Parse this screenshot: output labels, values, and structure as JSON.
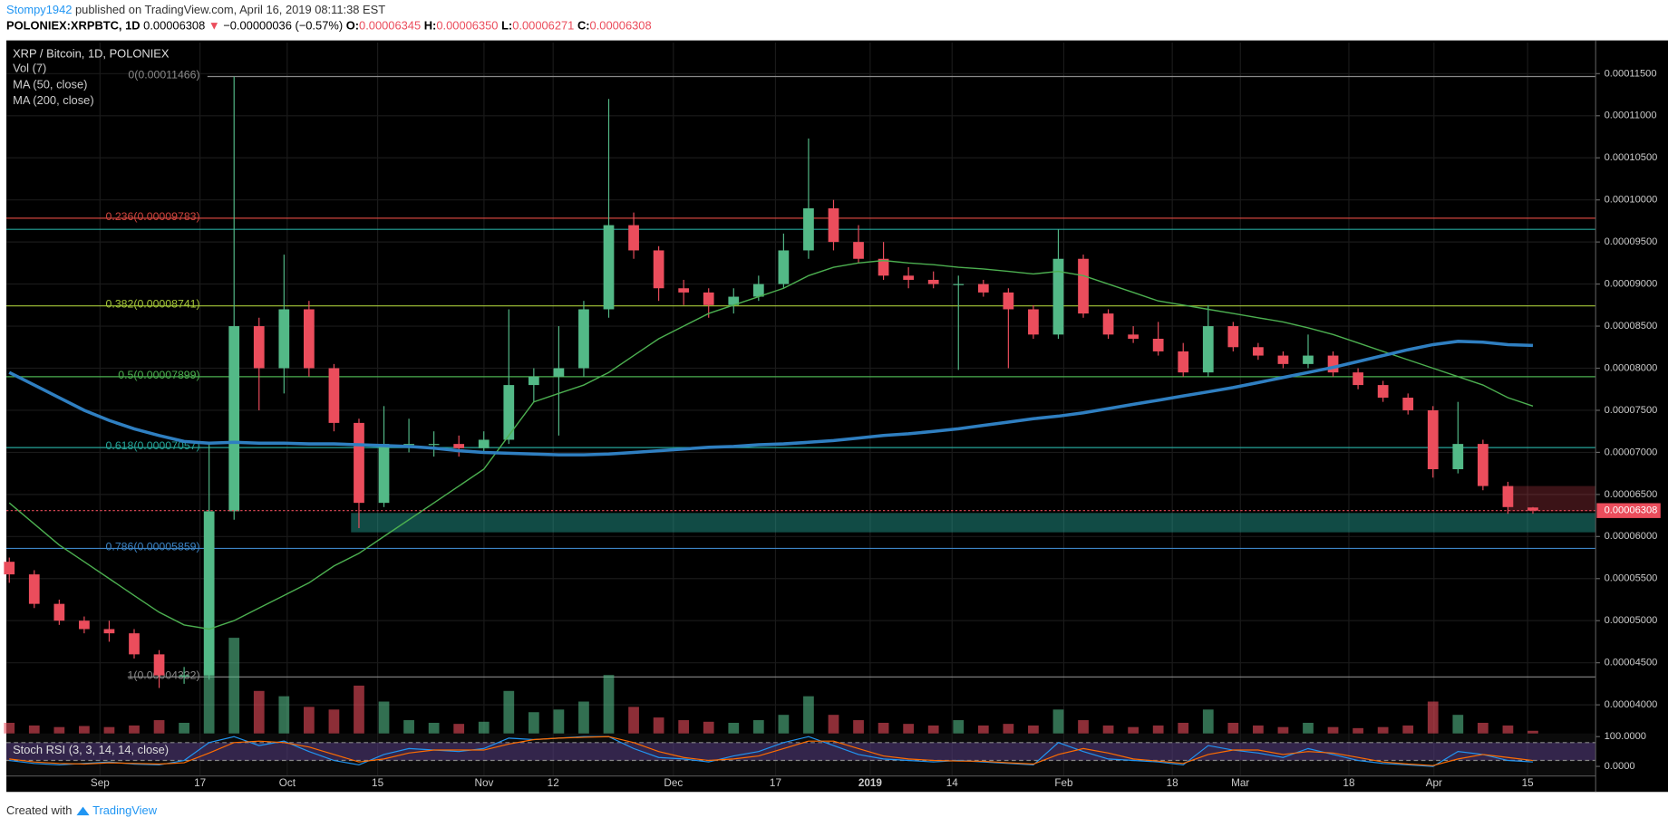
{
  "header": {
    "author": "Stompy1942",
    "published": "published on TradingView.com, April 16, 2019 08:11:38 EST",
    "symbol": "POLONIEX:XRPBTC, 1D",
    "last": "0.00006308",
    "change": "−0.00000036 (−0.57%)",
    "ohlc": [
      {
        "k": "O:",
        "v": "0.00006345"
      },
      {
        "k": "H:",
        "v": "0.00006350"
      },
      {
        "k": "L:",
        "v": "0.00006271"
      },
      {
        "k": "C:",
        "v": "0.00006308"
      }
    ]
  },
  "legend": {
    "pair": "XRP / Bitcoin, 1D, POLONIEX",
    "vol": "Vol (7)",
    "ma50": "MA (50, close)",
    "ma200": "MA (200, close)",
    "stoch": "Stoch RSI (3, 3, 14, 14, close)"
  },
  "footer": {
    "created": "Created with",
    "brand": "TradingView"
  },
  "chart_data": {
    "type": "candlestick",
    "up_color": "#53b987",
    "down_color": "#eb4d5c",
    "grid": true,
    "ylim": [
      3.66e-05,
      0.0001187
    ],
    "yticks": [
      {
        "value": 0.000115,
        "label": "0.00011500"
      },
      {
        "value": 0.00011,
        "label": "0.00011000"
      },
      {
        "value": 0.000105,
        "label": "0.00010500"
      },
      {
        "value": 0.0001,
        "label": "0.00010000"
      },
      {
        "value": 9.5e-05,
        "label": "0.00009500"
      },
      {
        "value": 9e-05,
        "label": "0.00009000"
      },
      {
        "value": 8.5e-05,
        "label": "0.00008500"
      },
      {
        "value": 8e-05,
        "label": "0.00008000"
      },
      {
        "value": 7.5e-05,
        "label": "0.00007500"
      },
      {
        "value": 7e-05,
        "label": "0.00007000"
      },
      {
        "value": 6.5e-05,
        "label": "0.00006500"
      },
      {
        "value": 6e-05,
        "label": "0.00006000"
      },
      {
        "value": 5.5e-05,
        "label": "0.00005500"
      },
      {
        "value": 5e-05,
        "label": "0.00005000"
      },
      {
        "value": 4.5e-05,
        "label": "0.00004500"
      },
      {
        "value": 4e-05,
        "label": "0.00004000"
      }
    ],
    "xticks": [
      "Sep",
      "17",
      "Oct",
      "15",
      "Nov",
      "12",
      "Dec",
      "17",
      "2019",
      "14",
      "Feb",
      "18",
      "Mar",
      "18",
      "Apr",
      "15"
    ],
    "open": [
      5.7e-05,
      5.55e-05,
      5.2e-05,
      5e-05,
      4.9e-05,
      4.85e-05,
      4.6e-05,
      4.35e-05,
      4.35e-05,
      6.3e-05,
      8.5e-05,
      8e-05,
      8.7e-05,
      8e-05,
      7.35e-05,
      6.4e-05,
      7.1e-05,
      7.1e-05,
      7.1e-05,
      7.05e-05,
      7.15e-05,
      7.8e-05,
      7.9e-05,
      8e-05,
      8.7e-05,
      9.7e-05,
      9.4e-05,
      8.95e-05,
      8.9e-05,
      8.75e-05,
      8.85e-05,
      9e-05,
      9.4e-05,
      9.9e-05,
      9.5e-05,
      9.3e-05,
      9.1e-05,
      9.05e-05,
      9e-05,
      9e-05,
      8.9e-05,
      8.7e-05,
      8.4e-05,
      9.3e-05,
      8.65e-05,
      8.4e-05,
      8.35e-05,
      8.2e-05,
      7.95e-05,
      8.5e-05,
      8.25e-05,
      8.15e-05,
      8.05e-05,
      8.15e-05,
      7.95e-05,
      7.8e-05,
      7.65e-05,
      7.5e-05,
      6.8e-05,
      7.1e-05,
      6.6e-05,
      6.345e-05
    ],
    "high": [
      5.75e-05,
      5.6e-05,
      5.25e-05,
      5.05e-05,
      5e-05,
      4.9e-05,
      4.65e-05,
      4.45e-05,
      7.1e-05,
      0.00011466,
      8.6e-05,
      9.35e-05,
      8.8e-05,
      8.05e-05,
      7.4e-05,
      7.55e-05,
      7.4e-05,
      7.25e-05,
      7.2e-05,
      7.25e-05,
      8.7e-05,
      8e-05,
      8.5e-05,
      8.8e-05,
      0.000112,
      9.85e-05,
      9.45e-05,
      9.05e-05,
      8.95e-05,
      8.95e-05,
      9.1e-05,
      9.6e-05,
      0.0001073,
      0.0001,
      9.7e-05,
      9.5e-05,
      9.2e-05,
      9.15e-05,
      9.1e-05,
      9.05e-05,
      8.95e-05,
      8.75e-05,
      9.65e-05,
      9.35e-05,
      8.7e-05,
      8.5e-05,
      8.55e-05,
      8.3e-05,
      8.75e-05,
      8.55e-05,
      8.3e-05,
      8.2e-05,
      8.4e-05,
      8.2e-05,
      8e-05,
      7.85e-05,
      7.7e-05,
      7.55e-05,
      7.6e-05,
      7.15e-05,
      6.65e-05,
      6.35e-05
    ],
    "low": [
      5.45e-05,
      5.15e-05,
      4.95e-05,
      4.85e-05,
      4.75e-05,
      4.55e-05,
      4.2e-05,
      4.25e-05,
      4.3e-05,
      6.2e-05,
      7.5e-05,
      7.7e-05,
      7.9e-05,
      7.25e-05,
      6.1e-05,
      6.35e-05,
      7e-05,
      6.95e-05,
      6.95e-05,
      7e-05,
      7.1e-05,
      7.6e-05,
      7.2e-05,
      7.9e-05,
      8.6e-05,
      9.3e-05,
      8.8e-05,
      8.75e-05,
      8.6e-05,
      8.65e-05,
      8.8e-05,
      8.95e-05,
      9.3e-05,
      9.4e-05,
      9.25e-05,
      9.05e-05,
      8.95e-05,
      8.95e-05,
      7.98e-05,
      8.85e-05,
      8e-05,
      8.35e-05,
      8.35e-05,
      8.6e-05,
      8.35e-05,
      8.3e-05,
      8.15e-05,
      7.9e-05,
      7.9e-05,
      8.2e-05,
      8.1e-05,
      8e-05,
      8e-05,
      7.9e-05,
      7.75e-05,
      7.6e-05,
      7.45e-05,
      6.7e-05,
      6.75e-05,
      6.55e-05,
      6.27e-05,
      6.271e-05
    ],
    "close": [
      5.55e-05,
      5.2e-05,
      5e-05,
      4.9e-05,
      4.85e-05,
      4.6e-05,
      4.35e-05,
      4.35e-05,
      6.3e-05,
      8.5e-05,
      8e-05,
      8.7e-05,
      8e-05,
      7.35e-05,
      6.4e-05,
      7.1e-05,
      7.1e-05,
      7.1e-05,
      7.05e-05,
      7.15e-05,
      7.8e-05,
      7.9e-05,
      8e-05,
      8.7e-05,
      9.7e-05,
      9.4e-05,
      8.95e-05,
      8.9e-05,
      8.75e-05,
      8.85e-05,
      9e-05,
      9.4e-05,
      9.9e-05,
      9.5e-05,
      9.3e-05,
      9.1e-05,
      9.05e-05,
      9e-05,
      9e-05,
      8.9e-05,
      8.7e-05,
      8.4e-05,
      9.3e-05,
      8.65e-05,
      8.4e-05,
      8.35e-05,
      8.2e-05,
      7.95e-05,
      8.5e-05,
      8.25e-05,
      8.15e-05,
      8.05e-05,
      8.15e-05,
      7.95e-05,
      7.8e-05,
      7.65e-05,
      7.5e-05,
      6.8e-05,
      7.1e-05,
      6.6e-05,
      6.35e-05,
      6.308e-05
    ],
    "volume": [
      20,
      15,
      12,
      14,
      12,
      15,
      25,
      20,
      120,
      180,
      80,
      70,
      50,
      45,
      90,
      60,
      25,
      20,
      18,
      22,
      80,
      40,
      45,
      60,
      110,
      50,
      30,
      25,
      22,
      20,
      25,
      35,
      70,
      35,
      25,
      20,
      18,
      15,
      25,
      15,
      18,
      15,
      45,
      25,
      15,
      12,
      15,
      20,
      45,
      20,
      15,
      12,
      20,
      12,
      10,
      12,
      15,
      60,
      35,
      20,
      15,
      5
    ],
    "ma50": {
      "color": "#4caf50",
      "values": [
        6.4e-05,
        6.15e-05,
        5.9e-05,
        5.7e-05,
        5.5e-05,
        5.3e-05,
        5.1e-05,
        4.95e-05,
        4.9e-05,
        5e-05,
        5.15e-05,
        5.3e-05,
        5.45e-05,
        5.65e-05,
        5.8e-05,
        6e-05,
        6.2e-05,
        6.4e-05,
        6.6e-05,
        6.8e-05,
        7.2e-05,
        7.6e-05,
        7.7e-05,
        7.8e-05,
        7.95e-05,
        8.15e-05,
        8.35e-05,
        8.5e-05,
        8.65e-05,
        8.75e-05,
        8.85e-05,
        8.95e-05,
        9.1e-05,
        9.2e-05,
        9.25e-05,
        9.28e-05,
        9.25e-05,
        9.23e-05,
        9.2e-05,
        9.18e-05,
        9.15e-05,
        9.12e-05,
        9.15e-05,
        9.1e-05,
        9e-05,
        8.9e-05,
        8.8e-05,
        8.75e-05,
        8.7e-05,
        8.65e-05,
        8.6e-05,
        8.55e-05,
        8.48e-05,
        8.4e-05,
        8.3e-05,
        8.2e-05,
        8.1e-05,
        8e-05,
        7.9e-05,
        7.8e-05,
        7.65e-05,
        7.55e-05
      ]
    },
    "ma200": {
      "color": "#2f7fc1",
      "values": [
        7.95e-05,
        7.8e-05,
        7.65e-05,
        7.5e-05,
        7.38e-05,
        7.28e-05,
        7.2e-05,
        7.13e-05,
        7.11e-05,
        7.12e-05,
        7.11e-05,
        7.11e-05,
        7.1e-05,
        7.1e-05,
        7.09e-05,
        7.08e-05,
        7.07e-05,
        7.05e-05,
        7.02e-05,
        7e-05,
        6.99e-05,
        6.98e-05,
        6.97e-05,
        6.97e-05,
        6.98e-05,
        7e-05,
        7.02e-05,
        7.04e-05,
        7.06e-05,
        7.07e-05,
        7.09e-05,
        7.1e-05,
        7.12e-05,
        7.14e-05,
        7.17e-05,
        7.2e-05,
        7.22e-05,
        7.25e-05,
        7.28e-05,
        7.32e-05,
        7.36e-05,
        7.4e-05,
        7.43e-05,
        7.47e-05,
        7.52e-05,
        7.57e-05,
        7.62e-05,
        7.67e-05,
        7.72e-05,
        7.77e-05,
        7.83e-05,
        7.89e-05,
        7.95e-05,
        8.01e-05,
        8.08e-05,
        8.15e-05,
        8.22e-05,
        8.28e-05,
        8.32e-05,
        8.31e-05,
        8.28e-05,
        8.27e-05
      ]
    },
    "fib": [
      {
        "label": "0(0.00011466)",
        "value": 0.00011466,
        "color": "#8a8a8a"
      },
      {
        "label": "0.236(0.00009783)",
        "value": 9.783e-05,
        "color": "#d0453e"
      },
      {
        "label": "0.382(0.00008741)",
        "value": 8.741e-05,
        "color": "#a6c83a"
      },
      {
        "label": "0.5(0.00007899)",
        "value": 7.899e-05,
        "color": "#4caf50"
      },
      {
        "label": "0.618(0.00007057)",
        "value": 7.057e-05,
        "color": "#26a69a"
      },
      {
        "label": "0.786(0.00005859)",
        "value": 5.859e-05,
        "color": "#3d85c6"
      },
      {
        "label": "1(0.00004332)",
        "value": 4.332e-05,
        "color": "#8a8a8a"
      }
    ],
    "levels": [
      {
        "value": 9.65e-05,
        "color": "#26a69a"
      }
    ],
    "zones": [
      {
        "from": 6.05e-05,
        "to": 6.28e-05,
        "color": "rgba(38,166,154,0.45)"
      },
      {
        "from": 6.3e-05,
        "to": 6.6e-05,
        "color": "rgba(235,77,92,0.25)"
      }
    ],
    "stoch": {
      "ylim": [
        0,
        100
      ],
      "yticks": [
        {
          "value": 100,
          "label": "100.0000"
        },
        {
          "value": 0,
          "label": "0.0000"
        }
      ],
      "bands": [
        20,
        80
      ],
      "k": {
        "color": "#2196f3",
        "values": [
          20,
          10,
          5,
          10,
          15,
          8,
          5,
          20,
          80,
          100,
          70,
          85,
          50,
          20,
          5,
          40,
          60,
          55,
          50,
          60,
          95,
          90,
          95,
          100,
          100,
          60,
          30,
          25,
          15,
          35,
          50,
          80,
          100,
          70,
          40,
          25,
          20,
          15,
          20,
          15,
          10,
          5,
          80,
          50,
          25,
          20,
          15,
          5,
          70,
          55,
          45,
          30,
          60,
          40,
          20,
          10,
          5,
          0,
          50,
          40,
          20,
          15
        ]
      },
      "d": {
        "color": "#ff6d00",
        "values": [
          25,
          15,
          10,
          8,
          12,
          10,
          8,
          12,
          45,
          80,
          85,
          80,
          65,
          40,
          15,
          25,
          45,
          55,
          55,
          55,
          75,
          90,
          95,
          98,
          100,
          80,
          50,
          30,
          20,
          25,
          35,
          60,
          85,
          85,
          60,
          35,
          25,
          20,
          18,
          17,
          12,
          8,
          40,
          60,
          45,
          25,
          18,
          10,
          40,
          55,
          55,
          40,
          50,
          45,
          30,
          15,
          8,
          3,
          25,
          40,
          30,
          20
        ]
      }
    }
  }
}
